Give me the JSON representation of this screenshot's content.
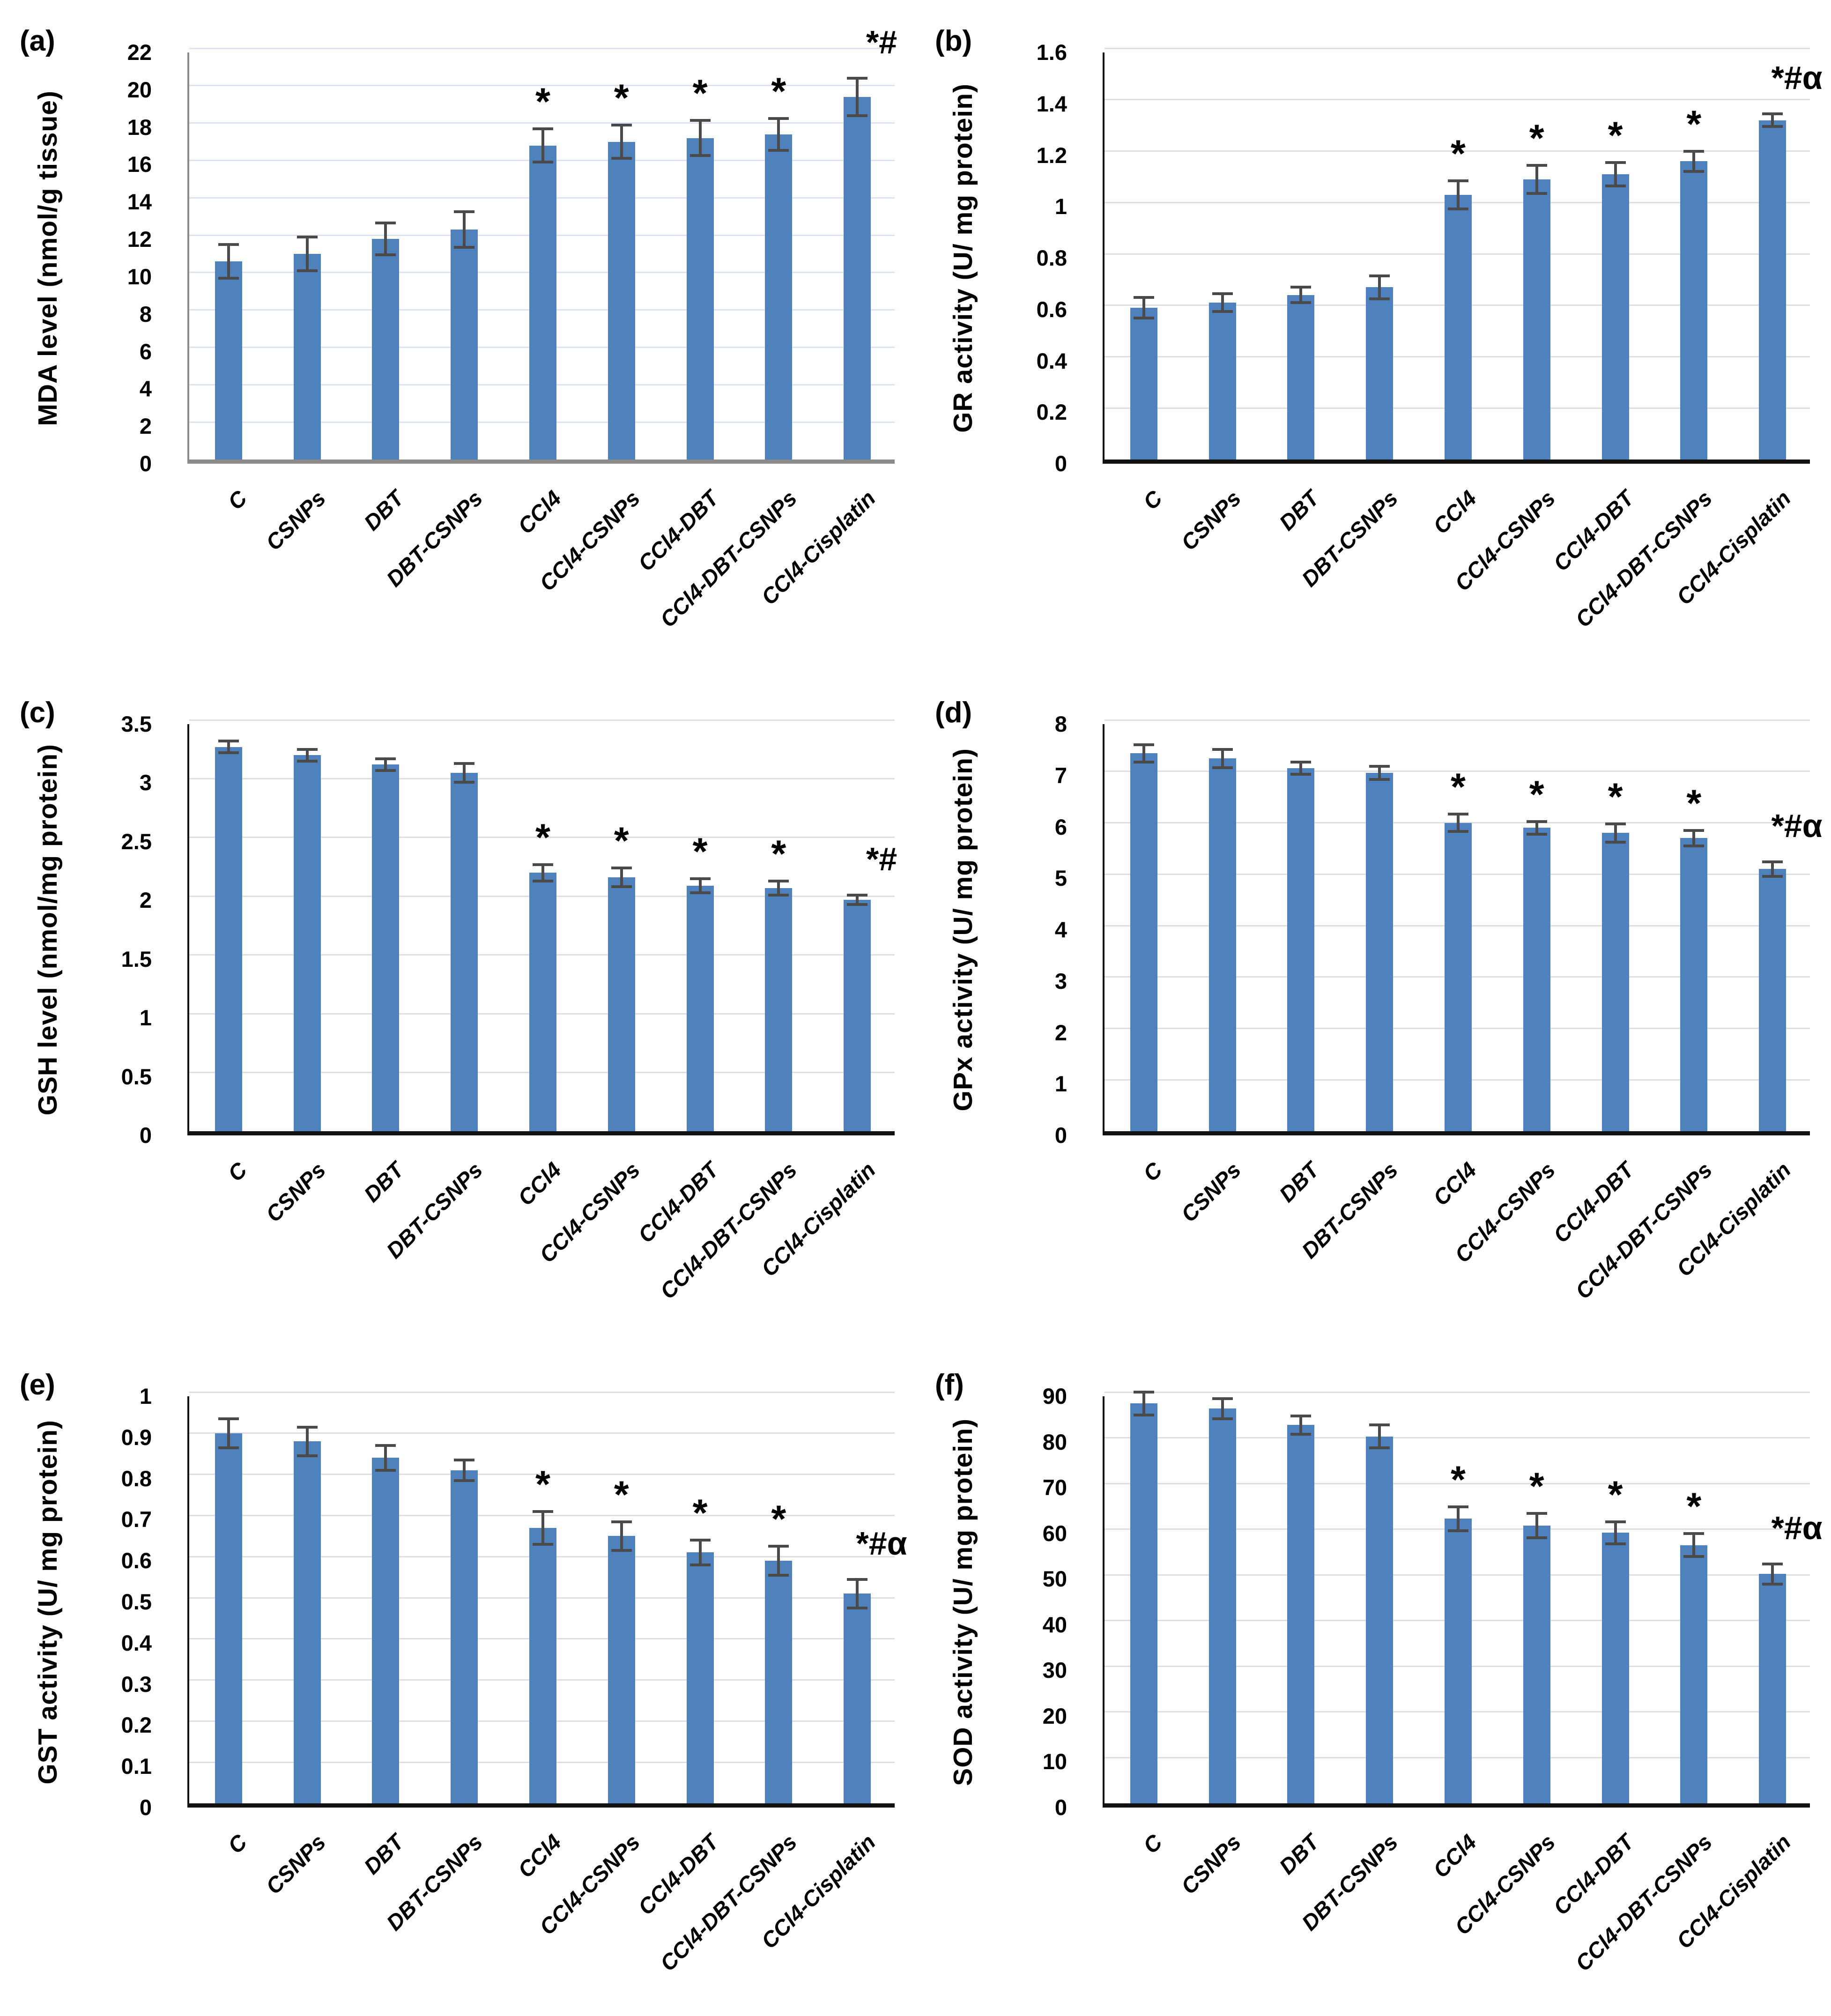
{
  "figure": {
    "description": "Six-panel bar chart figure of oxidative stress markers and antioxidant enzyme activities",
    "categories": [
      "C",
      "CSNPs",
      "DBT",
      "DBT-CSNPs",
      "CCl4",
      "CCl4-CSNPs",
      "CCl4-DBT",
      "CCl4-DBT-CSNPs",
      "CCl4-Cisplatin"
    ],
    "significance_symbols": [
      "*",
      "#",
      "α"
    ]
  },
  "colors": {
    "bar": "#4F81BD",
    "error_bar": "#4a4a4a",
    "gridline_gray": "#dedede",
    "gridline_blue": "#dbe5f1",
    "axis_black": "#111111",
    "axis_gray": "#8a8a8a",
    "background": "#ffffff",
    "text": "#000000"
  },
  "chart_data": [
    {
      "type": "bar",
      "panel": "(a)",
      "ylabel": "MDA level (nmol/g tissue)",
      "xlabel": "",
      "ylim": [
        0,
        22
      ],
      "ytick_step": 2,
      "grid": true,
      "legend": "none",
      "categories": [
        "C",
        "CSNPs",
        "DBT",
        "DBT-CSNPs",
        "CCl4",
        "CCl4-CSNPs",
        "CCl4-DBT",
        "CCl4-DBT-CSNPs",
        "CCl4-Cisplatin"
      ],
      "values": [
        10.6,
        11.0,
        11.8,
        12.3,
        16.8,
        17.0,
        17.2,
        17.4,
        19.4
      ],
      "errors": [
        0.9,
        0.9,
        0.85,
        0.95,
        0.9,
        0.9,
        0.95,
        0.85,
        1.0
      ],
      "significance": [
        "",
        "",
        "",
        "",
        "*",
        "*",
        "*",
        "*",
        "*#"
      ]
    },
    {
      "type": "bar",
      "panel": "(b)",
      "ylabel": "GR activity (U/ mg protein)",
      "xlabel": "",
      "ylim": [
        0,
        1.6
      ],
      "ytick_step": 0.2,
      "grid": true,
      "legend": "none",
      "categories": [
        "C",
        "CSNPs",
        "DBT",
        "DBT-CSNPs",
        "CCl4",
        "CCl4-CSNPs",
        "CCl4-DBT",
        "CCl4-DBT-CSNPs",
        "CCl4-Cisplatin"
      ],
      "values": [
        0.59,
        0.61,
        0.64,
        0.67,
        1.03,
        1.09,
        1.11,
        1.16,
        1.32
      ],
      "errors": [
        0.04,
        0.035,
        0.03,
        0.045,
        0.055,
        0.055,
        0.045,
        0.04,
        0.025
      ],
      "significance": [
        "",
        "",
        "",
        "",
        "*",
        "*",
        "*",
        "*",
        "*#α"
      ]
    },
    {
      "type": "bar",
      "panel": "(c)",
      "ylabel": "GSH level (nmol/mg protein)",
      "xlabel": "",
      "ylim": [
        0,
        3.5
      ],
      "ytick_step": 0.5,
      "grid": true,
      "legend": "none",
      "categories": [
        "C",
        "CSNPs",
        "DBT",
        "DBT-CSNPs",
        "CCl4",
        "CCl4-CSNPs",
        "CCl4-DBT",
        "CCl4-DBT-CSNPs",
        "CCl4-Cisplatin"
      ],
      "values": [
        3.27,
        3.2,
        3.12,
        3.05,
        2.2,
        2.16,
        2.09,
        2.07,
        1.97
      ],
      "errors": [
        0.05,
        0.05,
        0.05,
        0.08,
        0.07,
        0.08,
        0.06,
        0.06,
        0.04
      ],
      "significance": [
        "",
        "",
        "",
        "",
        "*",
        "*",
        "*",
        "*",
        "*#"
      ]
    },
    {
      "type": "bar",
      "panel": "(d)",
      "ylabel": "GPx activity (U/ mg protein)",
      "xlabel": "",
      "ylim": [
        0,
        8
      ],
      "ytick_step": 1,
      "grid": true,
      "legend": "none",
      "categories": [
        "C",
        "CSNPs",
        "DBT",
        "DBT-CSNPs",
        "CCl4",
        "CCl4-CSNPs",
        "CCl4-DBT",
        "CCl4-DBT-CSNPs",
        "CCl4-Cisplatin"
      ],
      "values": [
        7.35,
        7.25,
        7.06,
        6.97,
        6.0,
        5.9,
        5.8,
        5.7,
        5.1
      ],
      "errors": [
        0.17,
        0.18,
        0.12,
        0.13,
        0.17,
        0.12,
        0.18,
        0.15,
        0.14
      ],
      "significance": [
        "",
        "",
        "",
        "",
        "*",
        "*",
        "*",
        "*",
        "*#α"
      ]
    },
    {
      "type": "bar",
      "panel": "(e)",
      "ylabel": "GST activity (U/ mg protein)",
      "xlabel": "",
      "ylim": [
        0,
        1
      ],
      "ytick_step": 0.1,
      "grid": true,
      "legend": "none",
      "categories": [
        "C",
        "CSNPs",
        "DBT",
        "DBT-CSNPs",
        "CCl4",
        "CCl4-CSNPs",
        "CCl4-DBT",
        "CCl4-DBT-CSNPs",
        "CCl4-Cisplatin"
      ],
      "values": [
        0.9,
        0.88,
        0.84,
        0.81,
        0.67,
        0.65,
        0.61,
        0.59,
        0.51
      ],
      "errors": [
        0.035,
        0.035,
        0.03,
        0.025,
        0.04,
        0.035,
        0.03,
        0.035,
        0.035
      ],
      "significance": [
        "",
        "",
        "",
        "",
        "*",
        "*",
        "*",
        "*",
        "*#α"
      ]
    },
    {
      "type": "bar",
      "panel": "(f)",
      "ylabel": "SOD activity (U/ mg protein)",
      "xlabel": "",
      "ylim": [
        0,
        90
      ],
      "ytick_step": 10,
      "grid": true,
      "legend": "none",
      "categories": [
        "C",
        "CSNPs",
        "DBT",
        "DBT-CSNPs",
        "CCl4",
        "CCl4-CSNPs",
        "CCl4-DBT",
        "CCl4-DBT-CSNPs",
        "CCl4-Cisplatin"
      ],
      "values": [
        87.5,
        86.4,
        82.8,
        80.3,
        62.3,
        60.8,
        59.2,
        56.5,
        50.2
      ],
      "errors": [
        2.5,
        2.2,
        2.0,
        2.5,
        2.6,
        2.7,
        2.4,
        2.5,
        2.2
      ],
      "significance": [
        "",
        "",
        "",
        "",
        "*",
        "*",
        "*",
        "*",
        "*#α"
      ]
    }
  ]
}
